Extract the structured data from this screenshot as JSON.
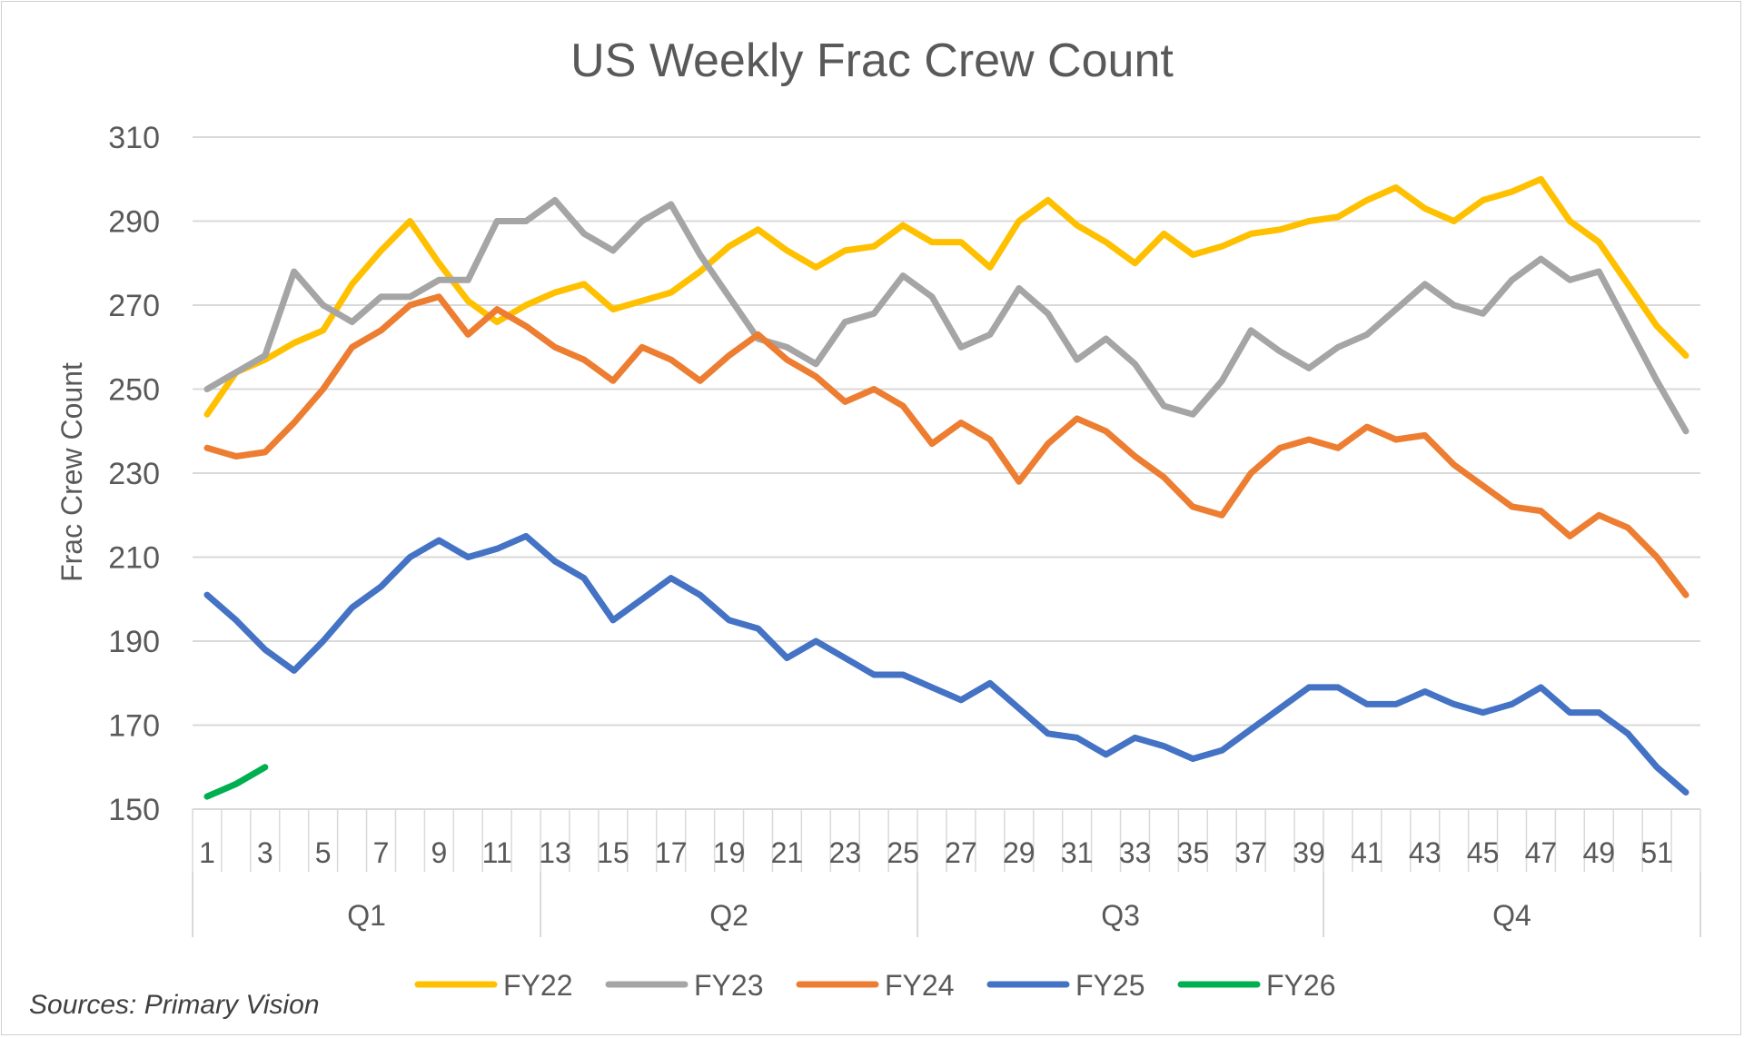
{
  "chart_data": {
    "type": "line",
    "title": "US Weekly Frac Crew Count",
    "xlabel": "",
    "ylabel": "Frac Crew Count",
    "ylim": [
      150,
      310
    ],
    "yticks": [
      150,
      170,
      190,
      210,
      230,
      250,
      270,
      290,
      310
    ],
    "weeks": 52,
    "xtick_labels": [
      "1",
      "3",
      "5",
      "7",
      "9",
      "11",
      "13",
      "15",
      "17",
      "19",
      "21",
      "23",
      "25",
      "27",
      "29",
      "31",
      "33",
      "35",
      "37",
      "39",
      "41",
      "43",
      "45",
      "47",
      "49",
      "51"
    ],
    "quarters": [
      {
        "label": "Q1",
        "start_week": 1,
        "end_week": 12
      },
      {
        "label": "Q2",
        "start_week": 13,
        "end_week": 25
      },
      {
        "label": "Q3",
        "start_week": 26,
        "end_week": 39
      },
      {
        "label": "Q4",
        "start_week": 40,
        "end_week": 52
      }
    ],
    "grid": true,
    "legend_position": "bottom",
    "series": [
      {
        "name": "FY22",
        "color": "#FFC000",
        "values": [
          244,
          254,
          257,
          261,
          264,
          275,
          283,
          290,
          280,
          271,
          266,
          270,
          273,
          275,
          269,
          271,
          273,
          278,
          284,
          288,
          283,
          279,
          283,
          284,
          289,
          285,
          285,
          279,
          290,
          295,
          289,
          285,
          280,
          287,
          282,
          284,
          287,
          288,
          290,
          291,
          295,
          298,
          293,
          290,
          295,
          297,
          300,
          290,
          285,
          275,
          265,
          258
        ]
      },
      {
        "name": "FY23",
        "color": "#A5A5A5",
        "values": [
          250,
          254,
          258,
          278,
          270,
          266,
          272,
          272,
          276,
          276,
          290,
          290,
          295,
          287,
          283,
          290,
          294,
          282,
          272,
          262,
          260,
          256,
          266,
          268,
          277,
          272,
          260,
          263,
          274,
          268,
          257,
          262,
          256,
          246,
          244,
          252,
          264,
          259,
          255,
          260,
          263,
          269,
          275,
          270,
          268,
          276,
          281,
          276,
          278,
          265,
          252,
          240
        ]
      },
      {
        "name": "FY24",
        "color": "#ED7D31",
        "values": [
          236,
          234,
          235,
          242,
          250,
          260,
          264,
          270,
          272,
          263,
          269,
          265,
          260,
          257,
          252,
          260,
          257,
          252,
          258,
          263,
          257,
          253,
          247,
          250,
          246,
          237,
          242,
          238,
          228,
          237,
          243,
          240,
          234,
          229,
          222,
          220,
          230,
          236,
          238,
          236,
          241,
          238,
          239,
          232,
          227,
          222,
          221,
          215,
          220,
          217,
          210,
          201
        ]
      },
      {
        "name": "FY25",
        "color": "#4472C4",
        "values": [
          201,
          195,
          188,
          183,
          190,
          198,
          203,
          210,
          214,
          210,
          212,
          215,
          209,
          205,
          195,
          200,
          205,
          201,
          195,
          193,
          186,
          190,
          186,
          182,
          182,
          179,
          176,
          180,
          174,
          168,
          167,
          163,
          167,
          165,
          162,
          164,
          169,
          174,
          179,
          179,
          175,
          175,
          178,
          175,
          173,
          175,
          179,
          173,
          173,
          168,
          160,
          154
        ]
      },
      {
        "name": "FY26",
        "color": "#00B050",
        "values": [
          153,
          156,
          160
        ]
      }
    ],
    "source_note": "Sources: Primary Vision"
  }
}
